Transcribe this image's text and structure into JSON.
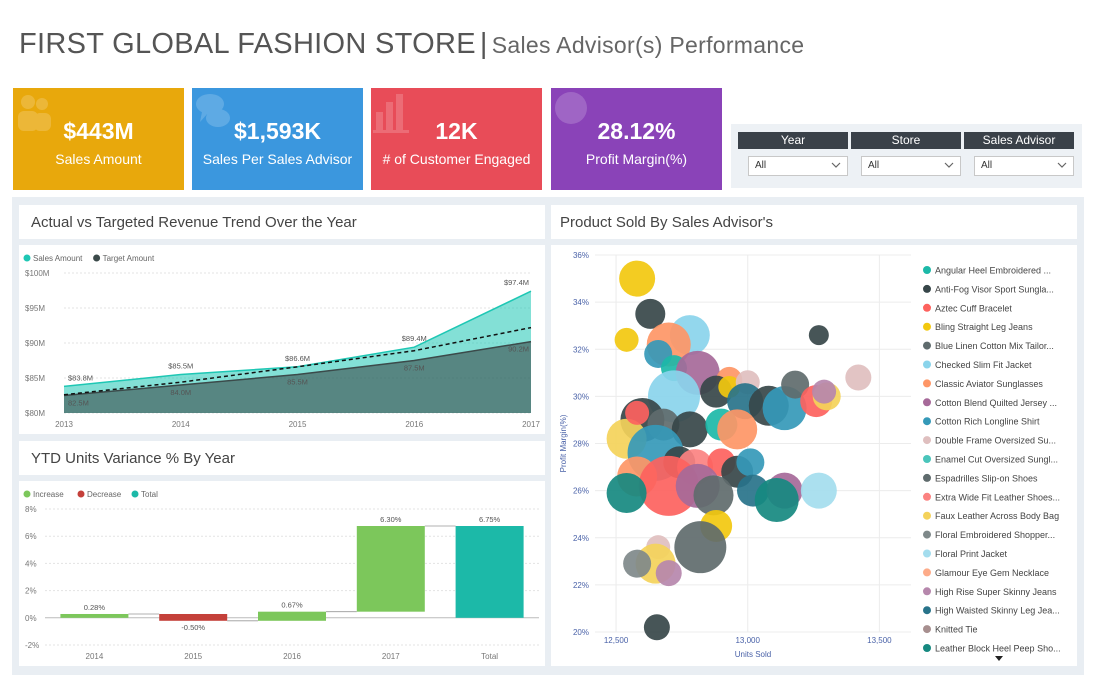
{
  "header": {
    "title": "FIRST GLOBAL FASHION STORE",
    "separator": "|",
    "subtitle": "Sales Advisor(s) Performance"
  },
  "kpis": [
    {
      "value": "$443M",
      "label": "Sales Amount",
      "color": "#e8a80c",
      "icon": "people-icon"
    },
    {
      "value": "$1,593K",
      "label": "Sales Per Sales Advisor",
      "color": "#3b97de",
      "icon": "chat-bubbles-icon"
    },
    {
      "value": "12K",
      "label": "# of Customer Engaged",
      "color": "#e84c58",
      "icon": "bar-chart-icon"
    },
    {
      "value": "28.12%",
      "label": "Profit Margin(%)",
      "color": "#8a43b8",
      "icon": "globe-icon"
    }
  ],
  "slicers": [
    {
      "label": "Year",
      "value": "All"
    },
    {
      "label": "Store",
      "value": "All"
    },
    {
      "label": "Sales Advisor",
      "value": "All"
    }
  ],
  "panels": {
    "revenue_title": "Actual vs Targeted Revenue Trend Over the Year",
    "variance_title": "YTD Units Variance % By Year",
    "scatter_title": "Product Sold By Sales Advisor's"
  },
  "chart_data": [
    {
      "type": "area",
      "title": "Actual vs Targeted Revenue Trend Over the Year",
      "x": [
        "2013",
        "2014",
        "2015",
        "2016",
        "2017"
      ],
      "series": [
        {
          "name": "Sales Amount",
          "values": [
            83.8,
            85.5,
            86.6,
            89.4,
            97.4
          ],
          "labels": [
            "$83.8M",
            "$85.5M",
            "$86.6M",
            "$89.4M",
            "$97.4M"
          ],
          "color": "#1ec7b4"
        },
        {
          "name": "Target Amount",
          "values": [
            82.5,
            84.0,
            85.5,
            87.5,
            90.2
          ],
          "labels": [
            "82.5M",
            "84.0M",
            "85.5M",
            "87.5M",
            "90.2M"
          ],
          "color": "#3b4a4a"
        }
      ],
      "trend_line": {
        "values": [
          82.6,
          84.4,
          86.6,
          88.9,
          92.2
        ],
        "style": "dashed"
      },
      "yticks": [
        "$80M",
        "$85M",
        "$90M",
        "$95M",
        "$100M"
      ],
      "ylim": [
        80,
        100
      ],
      "legend": "top-left"
    },
    {
      "type": "bar",
      "title": "YTD Units Variance % By Year",
      "subtype": "waterfall",
      "categories": [
        "2014",
        "2015",
        "2016",
        "2017",
        "Total"
      ],
      "values": [
        0.28,
        -0.5,
        0.67,
        6.3,
        6.75
      ],
      "labels": [
        "0.28%",
        "-0.50%",
        "0.67%",
        "6.30%",
        "6.75%"
      ],
      "kinds": [
        "increase",
        "decrease",
        "increase",
        "increase",
        "total"
      ],
      "legend_items": [
        {
          "name": "Increase",
          "color": "#7cc75b"
        },
        {
          "name": "Decrease",
          "color": "#c4403a"
        },
        {
          "name": "Total",
          "color": "#1cb9a8"
        }
      ],
      "yticks": [
        "-2%",
        "0%",
        "2%",
        "4%",
        "6%",
        "8%"
      ],
      "ylim": [
        -2,
        8
      ]
    },
    {
      "type": "scatter",
      "title": "Product Sold By Sales Advisor's",
      "xlabel": "Units Sold",
      "ylabel": "Profit Margin(%)",
      "xticks": [
        "12,500",
        "13,000",
        "13,500"
      ],
      "yticks": [
        "20%",
        "22%",
        "24%",
        "26%",
        "28%",
        "30%",
        "32%",
        "34%",
        "36%"
      ],
      "xlim": [
        12420,
        13620
      ],
      "ylim": [
        20,
        36
      ],
      "legend": [
        {
          "name": "Angular Heel Embroidered ...",
          "color": "#1cb9a8"
        },
        {
          "name": "Anti-Fog Visor Sport Sungla...",
          "color": "#374649"
        },
        {
          "name": "Aztec Cuff Bracelet",
          "color": "#fd625e"
        },
        {
          "name": "Bling Straight Leg Jeans",
          "color": "#f2c80f"
        },
        {
          "name": "Blue Linen Cotton Mix Tailor...",
          "color": "#5f6b6d"
        },
        {
          "name": "Checked Slim Fit Jacket",
          "color": "#8ad4eb"
        },
        {
          "name": "Classic Aviator Sunglasses",
          "color": "#fe9666"
        },
        {
          "name": "Cotton Blend Quilted Jersey ...",
          "color": "#a66999"
        },
        {
          "name": "Cotton Rich Longline Shirt",
          "color": "#3599b8"
        },
        {
          "name": "Double Frame Oversized Su...",
          "color": "#dfbfbf"
        },
        {
          "name": "Enamel Cut Oversized Sungl...",
          "color": "#4ac5bb"
        },
        {
          "name": "Espadrilles Slip-on Shoes",
          "color": "#5f6b6d"
        },
        {
          "name": "Extra Wide Fit Leather Shoes...",
          "color": "#fb8281"
        },
        {
          "name": "Faux Leather Across Body Bag",
          "color": "#f4d25a"
        },
        {
          "name": "Floral Embroidered Shopper...",
          "color": "#7f898a"
        },
        {
          "name": "Floral Print Jacket",
          "color": "#a4ddee"
        },
        {
          "name": "Glamour Eye Gem Necklace",
          "color": "#fdab89"
        },
        {
          "name": "High Rise Super Skinny Jeans",
          "color": "#b687ac"
        },
        {
          "name": "High Waisted Skinny Leg Jea...",
          "color": "#28738a"
        },
        {
          "name": "Knitted Tie",
          "color": "#a78f8f"
        },
        {
          "name": "Leather Block Heel Peep Sho...",
          "color": "#168980"
        }
      ],
      "points": [
        {
          "x": 12580,
          "y": 35.0,
          "s": 18,
          "c": 3
        },
        {
          "x": 12630,
          "y": 33.5,
          "s": 15,
          "c": 1
        },
        {
          "x": 12780,
          "y": 32.6,
          "s": 20,
          "c": 5
        },
        {
          "x": 12700,
          "y": 32.2,
          "s": 22,
          "c": 6
        },
        {
          "x": 12540,
          "y": 32.4,
          "s": 12,
          "c": 3
        },
        {
          "x": 12660,
          "y": 31.8,
          "s": 14,
          "c": 8
        },
        {
          "x": 13270,
          "y": 32.6,
          "s": 10,
          "c": 1
        },
        {
          "x": 12720,
          "y": 31.2,
          "s": 13,
          "c": 0
        },
        {
          "x": 12810,
          "y": 31.0,
          "s": 22,
          "c": 7
        },
        {
          "x": 12930,
          "y": 30.7,
          "s": 13,
          "c": 6
        },
        {
          "x": 12720,
          "y": 30.0,
          "s": 26,
          "c": 5
        },
        {
          "x": 12880,
          "y": 30.2,
          "s": 16,
          "c": 1
        },
        {
          "x": 12930,
          "y": 30.4,
          "s": 11,
          "c": 3
        },
        {
          "x": 13000,
          "y": 30.6,
          "s": 12,
          "c": 9
        },
        {
          "x": 12990,
          "y": 29.8,
          "s": 18,
          "c": 18
        },
        {
          "x": 13080,
          "y": 29.6,
          "s": 20,
          "c": 1
        },
        {
          "x": 13140,
          "y": 29.5,
          "s": 22,
          "c": 8
        },
        {
          "x": 13180,
          "y": 30.5,
          "s": 14,
          "c": 11
        },
        {
          "x": 13260,
          "y": 29.8,
          "s": 16,
          "c": 2
        },
        {
          "x": 13300,
          "y": 30.0,
          "s": 14,
          "c": 13
        },
        {
          "x": 13290,
          "y": 30.2,
          "s": 12,
          "c": 17
        },
        {
          "x": 13420,
          "y": 30.8,
          "s": 13,
          "c": 9
        },
        {
          "x": 12600,
          "y": 29.0,
          "s": 22,
          "c": 1
        },
        {
          "x": 12540,
          "y": 28.2,
          "s": 20,
          "c": 13
        },
        {
          "x": 12580,
          "y": 29.3,
          "s": 12,
          "c": 2
        },
        {
          "x": 12680,
          "y": 28.8,
          "s": 16,
          "c": 4
        },
        {
          "x": 12780,
          "y": 28.6,
          "s": 18,
          "c": 1
        },
        {
          "x": 12900,
          "y": 28.8,
          "s": 16,
          "c": 0
        },
        {
          "x": 12960,
          "y": 28.6,
          "s": 20,
          "c": 6
        },
        {
          "x": 12650,
          "y": 27.6,
          "s": 28,
          "c": 8
        },
        {
          "x": 12740,
          "y": 27.2,
          "s": 16,
          "c": 1
        },
        {
          "x": 12800,
          "y": 27.0,
          "s": 18,
          "c": 12
        },
        {
          "x": 12900,
          "y": 27.2,
          "s": 14,
          "c": 2
        },
        {
          "x": 12960,
          "y": 26.8,
          "s": 16,
          "c": 1
        },
        {
          "x": 13010,
          "y": 27.2,
          "s": 14,
          "c": 8
        },
        {
          "x": 12580,
          "y": 26.6,
          "s": 20,
          "c": 6
        },
        {
          "x": 12700,
          "y": 26.2,
          "s": 30,
          "c": 2
        },
        {
          "x": 12810,
          "y": 26.2,
          "s": 22,
          "c": 7
        },
        {
          "x": 12870,
          "y": 25.8,
          "s": 20,
          "c": 4
        },
        {
          "x": 13020,
          "y": 26.0,
          "s": 16,
          "c": 18
        },
        {
          "x": 13140,
          "y": 26.0,
          "s": 18,
          "c": 7
        },
        {
          "x": 13110,
          "y": 25.6,
          "s": 22,
          "c": 20
        },
        {
          "x": 13270,
          "y": 26.0,
          "s": 18,
          "c": 15
        },
        {
          "x": 12540,
          "y": 25.9,
          "s": 20,
          "c": 20
        },
        {
          "x": 12880,
          "y": 24.5,
          "s": 16,
          "c": 3
        },
        {
          "x": 12820,
          "y": 23.6,
          "s": 26,
          "c": 11
        },
        {
          "x": 12660,
          "y": 23.6,
          "s": 12,
          "c": 9
        },
        {
          "x": 12650,
          "y": 22.9,
          "s": 20,
          "c": 13
        },
        {
          "x": 12580,
          "y": 22.9,
          "s": 14,
          "c": 14
        },
        {
          "x": 12700,
          "y": 22.5,
          "s": 13,
          "c": 17
        },
        {
          "x": 12655,
          "y": 20.2,
          "s": 13,
          "c": 1
        }
      ]
    }
  ]
}
